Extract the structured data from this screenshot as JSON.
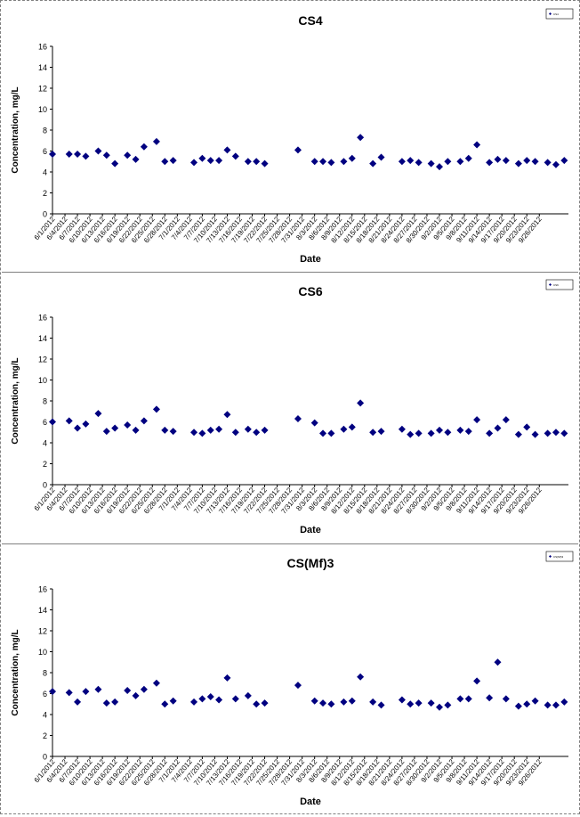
{
  "chart_data": [
    {
      "type": "scatter",
      "title": "CS4",
      "xlabel": "Date",
      "ylabel": "Concentration, mg/L",
      "ylim": [
        0,
        16
      ],
      "yticks": [
        0,
        2,
        4,
        6,
        8,
        10,
        12,
        14,
        16
      ],
      "legend_label": "CS4",
      "legend_position": "top-right",
      "marker_color": "#000080",
      "x_ticks": [
        "6/1/2012",
        "6/4/2012",
        "6/7/2012",
        "6/10/2012",
        "6/13/2012",
        "6/16/2012",
        "6/19/2012",
        "6/22/2012",
        "6/25/2012",
        "6/28/2012",
        "7/1/2012",
        "7/4/2012",
        "7/7/2012",
        "7/10/2012",
        "7/13/2012",
        "7/16/2012",
        "7/19/2012",
        "7/22/2012",
        "7/25/2012",
        "7/28/2012",
        "7/31/2012",
        "8/3/2012",
        "8/6/2012",
        "8/9/2012",
        "8/12/2012",
        "8/15/2012",
        "8/18/2012",
        "8/21/2012",
        "8/24/2012",
        "8/27/2012",
        "8/30/2012",
        "9/2/2012",
        "9/5/2012",
        "9/8/2012",
        "9/11/2012",
        "9/14/2012",
        "9/17/2012",
        "9/20/2012",
        "9/23/2012",
        "9/26/2012"
      ],
      "points": [
        {
          "x": "6/1/2012",
          "y": 5.7
        },
        {
          "x": "6/5/2012",
          "y": 5.7
        },
        {
          "x": "6/7/2012",
          "y": 5.7
        },
        {
          "x": "6/9/2012",
          "y": 5.5
        },
        {
          "x": "6/12/2012",
          "y": 6.0
        },
        {
          "x": "6/14/2012",
          "y": 5.6
        },
        {
          "x": "6/16/2012",
          "y": 4.8
        },
        {
          "x": "6/19/2012",
          "y": 5.6
        },
        {
          "x": "6/21/2012",
          "y": 5.2
        },
        {
          "x": "6/23/2012",
          "y": 6.4
        },
        {
          "x": "6/26/2012",
          "y": 6.9
        },
        {
          "x": "6/28/2012",
          "y": 5.0
        },
        {
          "x": "6/30/2012",
          "y": 5.1
        },
        {
          "x": "7/5/2012",
          "y": 4.9
        },
        {
          "x": "7/7/2012",
          "y": 5.3
        },
        {
          "x": "7/9/2012",
          "y": 5.1
        },
        {
          "x": "7/11/2012",
          "y": 5.1
        },
        {
          "x": "7/13/2012",
          "y": 6.1
        },
        {
          "x": "7/15/2012",
          "y": 5.5
        },
        {
          "x": "7/18/2012",
          "y": 5.0
        },
        {
          "x": "7/20/2012",
          "y": 5.0
        },
        {
          "x": "7/22/2012",
          "y": 4.8
        },
        {
          "x": "7/30/2012",
          "y": 6.1
        },
        {
          "x": "8/3/2012",
          "y": 5.0
        },
        {
          "x": "8/5/2012",
          "y": 5.0
        },
        {
          "x": "8/7/2012",
          "y": 4.9
        },
        {
          "x": "8/10/2012",
          "y": 5.0
        },
        {
          "x": "8/12/2012",
          "y": 5.3
        },
        {
          "x": "8/14/2012",
          "y": 7.3
        },
        {
          "x": "8/17/2012",
          "y": 4.8
        },
        {
          "x": "8/19/2012",
          "y": 5.4
        },
        {
          "x": "8/24/2012",
          "y": 5.0
        },
        {
          "x": "8/26/2012",
          "y": 5.1
        },
        {
          "x": "8/28/2012",
          "y": 4.9
        },
        {
          "x": "8/31/2012",
          "y": 4.8
        },
        {
          "x": "9/2/2012",
          "y": 4.5
        },
        {
          "x": "9/4/2012",
          "y": 5.0
        },
        {
          "x": "9/7/2012",
          "y": 5.0
        },
        {
          "x": "9/9/2012",
          "y": 5.3
        },
        {
          "x": "9/11/2012",
          "y": 6.6
        },
        {
          "x": "9/14/2012",
          "y": 4.9
        },
        {
          "x": "9/16/2012",
          "y": 5.2
        },
        {
          "x": "9/18/2012",
          "y": 5.1
        },
        {
          "x": "9/21/2012",
          "y": 4.8
        },
        {
          "x": "9/23/2012",
          "y": 5.1
        },
        {
          "x": "9/25/2012",
          "y": 5.0
        },
        {
          "x": "9/28/2012",
          "y": 4.9
        },
        {
          "x": "9/30/2012",
          "y": 4.7
        },
        {
          "x": "10/2/2012",
          "y": 5.1
        }
      ]
    },
    {
      "type": "scatter",
      "title": "CS6",
      "xlabel": "Date",
      "ylabel": "Concentration, mg/L",
      "ylim": [
        0,
        16
      ],
      "yticks": [
        0,
        2,
        4,
        6,
        8,
        10,
        12,
        14,
        16
      ],
      "legend_label": "CS6",
      "legend_position": "top-right",
      "marker_color": "#000080",
      "x_ticks": [
        "6/1/2012",
        "6/4/2012",
        "6/7/2012",
        "6/10/2012",
        "6/13/2012",
        "6/16/2012",
        "6/19/2012",
        "6/22/2012",
        "6/25/2012",
        "6/28/2012",
        "7/1/2012",
        "7/4/2012",
        "7/7/2012",
        "7/10/2012",
        "7/13/2012",
        "7/16/2012",
        "7/19/2012",
        "7/22/2012",
        "7/25/2012",
        "7/28/2012",
        "7/31/2012",
        "8/3/2012",
        "8/6/2012",
        "8/9/2012",
        "8/12/2012",
        "8/15/2012",
        "8/18/2012",
        "8/21/2012",
        "8/24/2012",
        "8/27/2012",
        "8/30/2012",
        "9/2/2012",
        "9/5/2012",
        "9/8/2012",
        "9/11/2012",
        "9/14/2012",
        "9/17/2012",
        "9/20/2012",
        "9/23/2012",
        "9/26/2012"
      ],
      "points": [
        {
          "x": "6/1/2012",
          "y": 6.0
        },
        {
          "x": "6/5/2012",
          "y": 6.1
        },
        {
          "x": "6/7/2012",
          "y": 5.4
        },
        {
          "x": "6/9/2012",
          "y": 5.8
        },
        {
          "x": "6/12/2012",
          "y": 6.8
        },
        {
          "x": "6/14/2012",
          "y": 5.1
        },
        {
          "x": "6/16/2012",
          "y": 5.4
        },
        {
          "x": "6/19/2012",
          "y": 5.7
        },
        {
          "x": "6/21/2012",
          "y": 5.2
        },
        {
          "x": "6/23/2012",
          "y": 6.1
        },
        {
          "x": "6/26/2012",
          "y": 7.2
        },
        {
          "x": "6/28/2012",
          "y": 5.2
        },
        {
          "x": "6/30/2012",
          "y": 5.1
        },
        {
          "x": "7/5/2012",
          "y": 5.0
        },
        {
          "x": "7/7/2012",
          "y": 4.9
        },
        {
          "x": "7/9/2012",
          "y": 5.2
        },
        {
          "x": "7/11/2012",
          "y": 5.3
        },
        {
          "x": "7/13/2012",
          "y": 6.7
        },
        {
          "x": "7/15/2012",
          "y": 5.0
        },
        {
          "x": "7/18/2012",
          "y": 5.3
        },
        {
          "x": "7/20/2012",
          "y": 5.0
        },
        {
          "x": "7/22/2012",
          "y": 5.2
        },
        {
          "x": "7/30/2012",
          "y": 6.3
        },
        {
          "x": "8/3/2012",
          "y": 5.9
        },
        {
          "x": "8/5/2012",
          "y": 4.9
        },
        {
          "x": "8/7/2012",
          "y": 4.9
        },
        {
          "x": "8/10/2012",
          "y": 5.3
        },
        {
          "x": "8/12/2012",
          "y": 5.5
        },
        {
          "x": "8/14/2012",
          "y": 7.8
        },
        {
          "x": "8/17/2012",
          "y": 5.0
        },
        {
          "x": "8/19/2012",
          "y": 5.1
        },
        {
          "x": "8/24/2012",
          "y": 5.3
        },
        {
          "x": "8/26/2012",
          "y": 4.8
        },
        {
          "x": "8/28/2012",
          "y": 4.9
        },
        {
          "x": "8/31/2012",
          "y": 4.9
        },
        {
          "x": "9/2/2012",
          "y": 5.2
        },
        {
          "x": "9/4/2012",
          "y": 5.0
        },
        {
          "x": "9/7/2012",
          "y": 5.2
        },
        {
          "x": "9/9/2012",
          "y": 5.1
        },
        {
          "x": "9/11/2012",
          "y": 6.2
        },
        {
          "x": "9/14/2012",
          "y": 4.9
        },
        {
          "x": "9/16/2012",
          "y": 5.4
        },
        {
          "x": "9/18/2012",
          "y": 6.2
        },
        {
          "x": "9/21/2012",
          "y": 4.8
        },
        {
          "x": "9/23/2012",
          "y": 5.5
        },
        {
          "x": "9/25/2012",
          "y": 4.8
        },
        {
          "x": "9/28/2012",
          "y": 4.9
        },
        {
          "x": "9/30/2012",
          "y": 5.0
        },
        {
          "x": "10/2/2012",
          "y": 4.9
        }
      ]
    },
    {
      "type": "scatter",
      "title": "CS(Mf)3",
      "xlabel": "Date",
      "ylabel": "Concentration, mg/L",
      "ylim": [
        0,
        16
      ],
      "yticks": [
        0,
        2,
        4,
        6,
        8,
        10,
        12,
        14,
        16
      ],
      "legend_label": "CS(Mf)3",
      "legend_position": "top-right",
      "marker_color": "#000080",
      "x_ticks": [
        "6/1/2012",
        "6/4/2012",
        "6/7/2012",
        "6/10/2012",
        "6/13/2012",
        "6/16/2012",
        "6/19/2012",
        "6/22/2012",
        "6/25/2012",
        "6/28/2012",
        "7/1/2012",
        "7/4/2012",
        "7/7/2012",
        "7/10/2012",
        "7/13/2012",
        "7/16/2012",
        "7/19/2012",
        "7/22/2012",
        "7/25/2012",
        "7/28/2012",
        "7/31/2012",
        "8/3/2012",
        "8/6/2012",
        "8/9/2012",
        "8/12/2012",
        "8/15/2012",
        "8/18/2012",
        "8/21/2012",
        "8/24/2012",
        "8/27/2012",
        "8/30/2012",
        "9/2/2012",
        "9/5/2012",
        "9/8/2012",
        "9/11/2012",
        "9/14/2012",
        "9/17/2012",
        "9/20/2012",
        "9/23/2012",
        "9/26/2012"
      ],
      "points": [
        {
          "x": "6/1/2012",
          "y": 6.2
        },
        {
          "x": "6/5/2012",
          "y": 6.1
        },
        {
          "x": "6/7/2012",
          "y": 5.2
        },
        {
          "x": "6/9/2012",
          "y": 6.2
        },
        {
          "x": "6/12/2012",
          "y": 6.4
        },
        {
          "x": "6/14/2012",
          "y": 5.1
        },
        {
          "x": "6/16/2012",
          "y": 5.2
        },
        {
          "x": "6/19/2012",
          "y": 6.3
        },
        {
          "x": "6/21/2012",
          "y": 5.8
        },
        {
          "x": "6/23/2012",
          "y": 6.4
        },
        {
          "x": "6/26/2012",
          "y": 7.0
        },
        {
          "x": "6/28/2012",
          "y": 5.0
        },
        {
          "x": "6/30/2012",
          "y": 5.3
        },
        {
          "x": "7/5/2012",
          "y": 5.2
        },
        {
          "x": "7/7/2012",
          "y": 5.5
        },
        {
          "x": "7/9/2012",
          "y": 5.7
        },
        {
          "x": "7/11/2012",
          "y": 5.4
        },
        {
          "x": "7/13/2012",
          "y": 7.5
        },
        {
          "x": "7/15/2012",
          "y": 5.5
        },
        {
          "x": "7/18/2012",
          "y": 5.8
        },
        {
          "x": "7/20/2012",
          "y": 5.0
        },
        {
          "x": "7/22/2012",
          "y": 5.1
        },
        {
          "x": "7/30/2012",
          "y": 6.8
        },
        {
          "x": "8/3/2012",
          "y": 5.3
        },
        {
          "x": "8/5/2012",
          "y": 5.1
        },
        {
          "x": "8/7/2012",
          "y": 5.0
        },
        {
          "x": "8/10/2012",
          "y": 5.2
        },
        {
          "x": "8/12/2012",
          "y": 5.3
        },
        {
          "x": "8/14/2012",
          "y": 7.6
        },
        {
          "x": "8/17/2012",
          "y": 5.2
        },
        {
          "x": "8/19/2012",
          "y": 4.9
        },
        {
          "x": "8/24/2012",
          "y": 5.4
        },
        {
          "x": "8/26/2012",
          "y": 5.0
        },
        {
          "x": "8/28/2012",
          "y": 5.1
        },
        {
          "x": "8/31/2012",
          "y": 5.1
        },
        {
          "x": "9/2/2012",
          "y": 4.7
        },
        {
          "x": "9/4/2012",
          "y": 4.9
        },
        {
          "x": "9/7/2012",
          "y": 5.5
        },
        {
          "x": "9/9/2012",
          "y": 5.5
        },
        {
          "x": "9/11/2012",
          "y": 7.2
        },
        {
          "x": "9/14/2012",
          "y": 5.6
        },
        {
          "x": "9/16/2012",
          "y": 9.0
        },
        {
          "x": "9/18/2012",
          "y": 5.5
        },
        {
          "x": "9/21/2012",
          "y": 4.8
        },
        {
          "x": "9/23/2012",
          "y": 5.0
        },
        {
          "x": "9/25/2012",
          "y": 5.3
        },
        {
          "x": "9/28/2012",
          "y": 4.9
        },
        {
          "x": "9/30/2012",
          "y": 4.9
        },
        {
          "x": "10/2/2012",
          "y": 5.2
        }
      ]
    }
  ]
}
